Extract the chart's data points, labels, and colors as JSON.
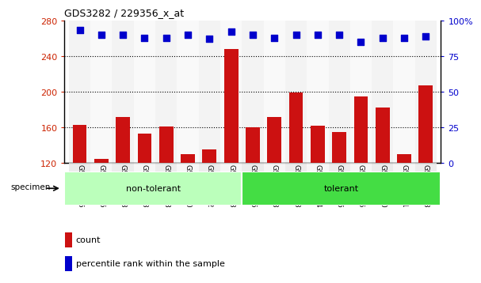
{
  "title": "GDS3282 / 229356_x_at",
  "samples": [
    "GSM124575",
    "GSM124675",
    "GSM124748",
    "GSM124833",
    "GSM124838",
    "GSM124840",
    "GSM124842",
    "GSM124863",
    "GSM124646",
    "GSM124648",
    "GSM124753",
    "GSM124834",
    "GSM124836",
    "GSM124845",
    "GSM124850",
    "GSM124851",
    "GSM124853"
  ],
  "counts": [
    163,
    125,
    172,
    153,
    161,
    130,
    135,
    248,
    160,
    172,
    199,
    162,
    155,
    195,
    182,
    130,
    207
  ],
  "percentile_ranks": [
    93,
    90,
    90,
    88,
    88,
    90,
    87,
    92,
    90,
    88,
    90,
    90,
    90,
    85,
    88,
    88,
    89
  ],
  "groups": [
    "non-tolerant",
    "non-tolerant",
    "non-tolerant",
    "non-tolerant",
    "non-tolerant",
    "non-tolerant",
    "non-tolerant",
    "non-tolerant",
    "tolerant",
    "tolerant",
    "tolerant",
    "tolerant",
    "tolerant",
    "tolerant",
    "tolerant",
    "tolerant",
    "tolerant"
  ],
  "group_colors": {
    "non-tolerant": "#bbffbb",
    "tolerant": "#44dd44"
  },
  "bar_color": "#cc1111",
  "dot_color": "#0000cc",
  "ylim_left": [
    120,
    280
  ],
  "ylim_right": [
    0,
    100
  ],
  "yticks_left": [
    120,
    160,
    200,
    240,
    280
  ],
  "yticks_right": [
    0,
    25,
    50,
    75,
    100
  ],
  "grid_values": [
    160,
    200,
    240
  ],
  "dot_size": 35,
  "bar_width": 0.65,
  "background_color": "#ffffff",
  "title_color": "#000000",
  "left_tick_color": "#cc2200",
  "right_tick_color": "#0000cc",
  "specimen_label": "specimen",
  "legend_count_label": "count",
  "legend_percentile_label": "percentile rank within the sample",
  "col_bg_even": "#e8e8e8",
  "col_bg_odd": "#f4f4f4"
}
